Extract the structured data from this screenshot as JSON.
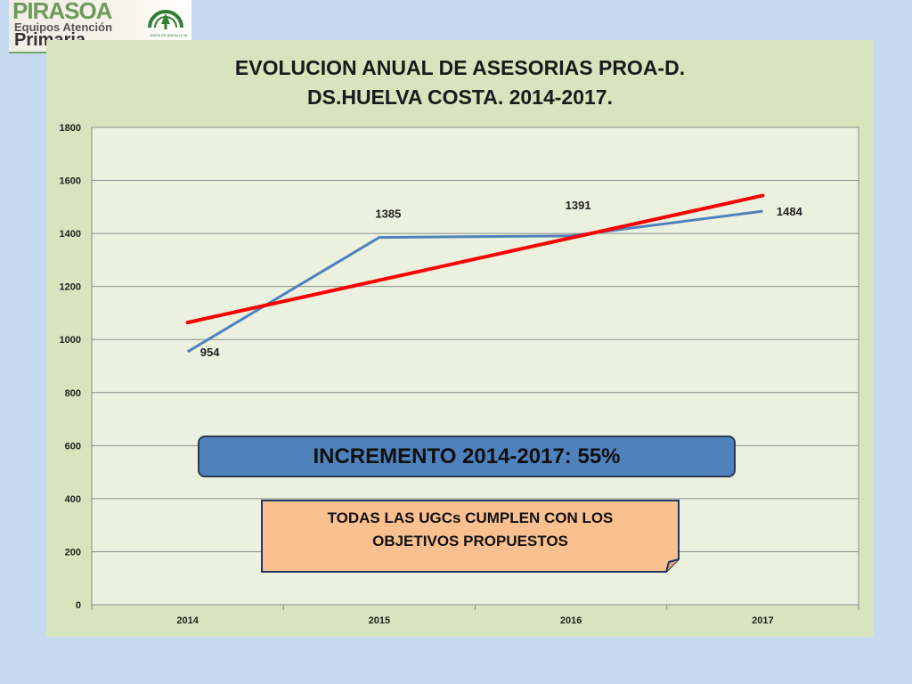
{
  "logo": {
    "brand": "PIRASOA",
    "line1": "Equipos Atención",
    "line2": "Primaria",
    "emblem_text": "JUNTA DE ANDALUCIA"
  },
  "chart_data": {
    "type": "line",
    "title_line1": "EVOLUCION ANUAL DE ASESORIAS PROA-D.",
    "title_line2": "DS.HUELVA COSTA. 2014-2017.",
    "categories": [
      "2014",
      "2015",
      "2016",
      "2017"
    ],
    "series": [
      {
        "values": [
          954,
          1385,
          1391,
          1484
        ],
        "color": "#4f81bd",
        "data_labels": true
      }
    ],
    "trendline": {
      "type": "linear",
      "color": "#ff0000"
    },
    "ylim": [
      0,
      1800
    ],
    "yticks": [
      0,
      200,
      400,
      600,
      800,
      1000,
      1200,
      1400,
      1600,
      1800
    ],
    "grid": true,
    "xlabel": "",
    "ylabel": ""
  },
  "callouts": {
    "increment": "INCREMENTO 2014-2017: 55%",
    "note_line1": "TODAS LAS UGCs CUMPLEN CON LOS",
    "note_line2": "OBJETIVOS PROPUESTOS"
  },
  "colors": {
    "background": "#c5d9f0",
    "panel": "#d7e4bd",
    "plot_area": "#ebf1de",
    "callout_blue": "#4f81bd",
    "callout_note": "#fac090"
  }
}
